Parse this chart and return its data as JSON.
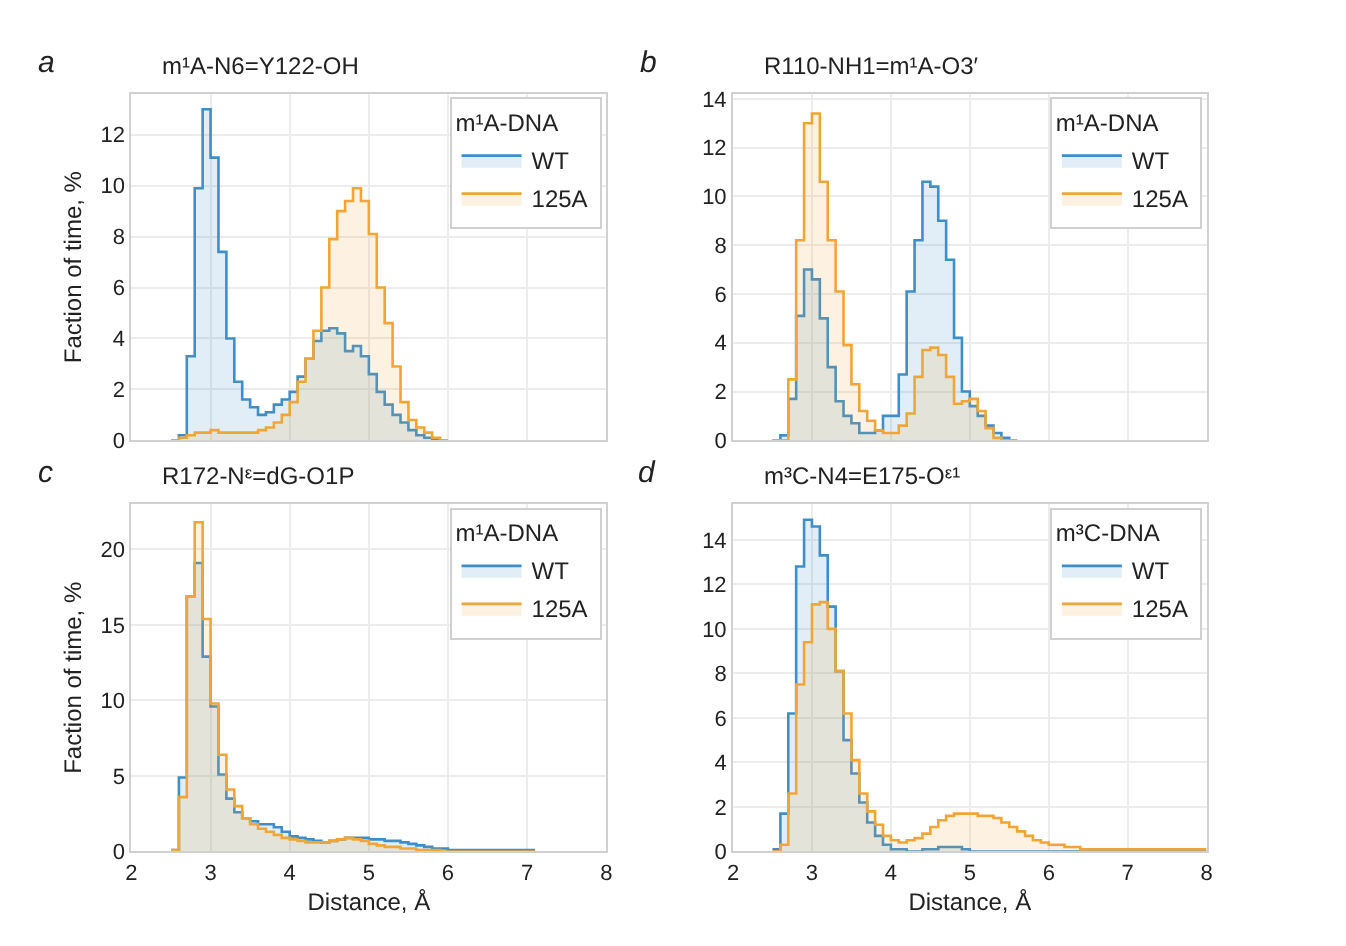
{
  "chart_data": [
    {
      "type": "histogram",
      "title": "m¹A-N6=Y122-OH",
      "annotations": [
        "a"
      ],
      "ylabel": "Faction of time, %",
      "legend_title": "m¹A-DNA",
      "legend": "top right",
      "grid": true,
      "tick_labels": "y",
      "bins": [
        2.5,
        2.6,
        2.7,
        2.8,
        2.9,
        3.0,
        3.1,
        3.2,
        3.3,
        3.4,
        3.5,
        3.6,
        3.7,
        3.8,
        3.9,
        4.0,
        4.1,
        4.2,
        4.3,
        4.4,
        4.5,
        4.6,
        4.7,
        4.8,
        4.9,
        5.0,
        5.1,
        5.2,
        5.3,
        5.4,
        5.5,
        5.6,
        5.7,
        5.8,
        5.9,
        6.0
      ],
      "xlim": [
        2,
        8
      ],
      "xticks": [
        2,
        3,
        4,
        5,
        6,
        7,
        8
      ],
      "ylim": [
        0,
        13.6
      ],
      "yticks": [
        0,
        2,
        4,
        6,
        8,
        10,
        12
      ],
      "series": [
        {
          "name": "WT",
          "color": "#3d8ec9",
          "values": [
            0,
            0.2,
            3.3,
            9.9,
            13.0,
            11.1,
            7.4,
            4.0,
            2.3,
            1.6,
            1.3,
            1.0,
            1.1,
            1.4,
            1.6,
            1.9,
            2.5,
            3.2,
            3.9,
            4.3,
            4.4,
            4.2,
            3.5,
            3.7,
            3.3,
            2.6,
            1.9,
            1.4,
            1.0,
            0.7,
            0.4,
            0.2,
            0.1,
            0,
            0
          ]
        },
        {
          "name": "125A",
          "color": "#f0a636",
          "values": [
            0,
            0.1,
            0.2,
            0.3,
            0.3,
            0.4,
            0.3,
            0.3,
            0.3,
            0.3,
            0.3,
            0.4,
            0.5,
            0.7,
            1.0,
            1.5,
            2.3,
            3.2,
            4.3,
            6.0,
            7.9,
            9.0,
            9.4,
            9.9,
            9.4,
            8.1,
            6.0,
            4.6,
            2.9,
            1.5,
            0.8,
            0.5,
            0.3,
            0.1,
            0
          ]
        }
      ]
    },
    {
      "type": "histogram",
      "title": "R110-NH1=m¹A-O3′",
      "annotations": [
        "b"
      ],
      "legend_title": "m¹A-DNA",
      "legend": "top right",
      "grid": true,
      "tick_labels": "y",
      "bins": [
        2.5,
        2.6,
        2.7,
        2.8,
        2.9,
        3.0,
        3.1,
        3.2,
        3.3,
        3.4,
        3.5,
        3.6,
        3.7,
        3.8,
        3.9,
        4.0,
        4.1,
        4.2,
        4.3,
        4.4,
        4.5,
        4.6,
        4.7,
        4.8,
        4.9,
        5.0,
        5.1,
        5.2,
        5.3,
        5.4,
        5.5,
        5.6
      ],
      "xlim": [
        2,
        8
      ],
      "xticks": [
        2,
        3,
        4,
        5,
        6,
        7,
        8
      ],
      "ylim": [
        0,
        14.2
      ],
      "yticks": [
        0,
        2,
        4,
        6,
        8,
        10,
        12,
        14
      ],
      "series": [
        {
          "name": "WT",
          "color": "#3d8ec9",
          "values": [
            0,
            0.2,
            1.7,
            5.1,
            7.0,
            6.6,
            5.0,
            3.0,
            1.6,
            1.0,
            0.7,
            0.3,
            0.3,
            0.4,
            1.0,
            1.0,
            2.7,
            6.1,
            8.2,
            10.6,
            10.4,
            9.0,
            7.4,
            4.2,
            2.0,
            1.4,
            1.0,
            0.6,
            0.3,
            0.1,
            0
          ]
        },
        {
          "name": "125A",
          "color": "#f0a636",
          "values": [
            0,
            0,
            2.5,
            8.2,
            13.0,
            13.4,
            10.6,
            8.2,
            6.1,
            3.9,
            2.3,
            1.2,
            0.8,
            0.4,
            0.3,
            0.3,
            0.6,
            1.1,
            2.6,
            3.7,
            3.8,
            3.5,
            2.6,
            1.5,
            1.6,
            1.7,
            1.2,
            0.5,
            0.1,
            0,
            0
          ]
        }
      ]
    },
    {
      "type": "histogram",
      "title": "R172-Nᵋ=dG-O1P",
      "annotations": [
        "c"
      ],
      "xlabel": "Distance, Å",
      "ylabel": "Faction of time, %",
      "legend_title": "m¹A-DNA",
      "legend": "top right",
      "grid": true,
      "bins": [
        2.5,
        2.6,
        2.7,
        2.8,
        2.9,
        3.0,
        3.1,
        3.2,
        3.3,
        3.4,
        3.5,
        3.6,
        3.7,
        3.8,
        3.9,
        4.0,
        4.1,
        4.2,
        4.3,
        4.4,
        4.5,
        4.6,
        4.7,
        4.8,
        4.9,
        5.0,
        5.1,
        5.2,
        5.3,
        5.4,
        5.5,
        5.6,
        5.7,
        5.8,
        5.9,
        6.0,
        6.1,
        6.2,
        6.3,
        6.4,
        6.5,
        6.6,
        6.7,
        6.8,
        6.9,
        7.0,
        7.1
      ],
      "xlim": [
        2,
        8
      ],
      "xticks": [
        2,
        3,
        4,
        5,
        6,
        7,
        8
      ],
      "ylim": [
        0,
        23
      ],
      "yticks": [
        0,
        5,
        10,
        15,
        20
      ],
      "series": [
        {
          "name": "WT",
          "color": "#3d8ec9",
          "values": [
            0.1,
            4.9,
            16.9,
            19.1,
            12.9,
            9.6,
            5.1,
            3.5,
            2.6,
            2.2,
            2.0,
            1.8,
            1.8,
            1.6,
            1.3,
            1.0,
            0.9,
            0.8,
            0.7,
            0.6,
            0.7,
            0.8,
            0.9,
            0.9,
            0.9,
            0.8,
            0.8,
            0.7,
            0.7,
            0.6,
            0.5,
            0.4,
            0.3,
            0.2,
            0.2,
            0.1,
            0.1,
            0.1,
            0.1,
            0.1,
            0.1,
            0.1,
            0.1,
            0.1,
            0.1,
            0.1
          ]
        },
        {
          "name": "125A",
          "color": "#f0a636",
          "values": [
            0.1,
            3.6,
            16.9,
            21.8,
            15.4,
            9.8,
            6.4,
            4.1,
            3.0,
            2.2,
            1.8,
            1.5,
            1.3,
            1.1,
            0.9,
            0.8,
            0.7,
            0.6,
            0.6,
            0.6,
            0.7,
            0.8,
            0.9,
            0.8,
            0.7,
            0.5,
            0.4,
            0.3,
            0.3,
            0.2,
            0.2,
            0.1,
            0.1,
            0.1,
            0,
            0,
            0,
            0,
            0,
            0,
            0,
            0,
            0,
            0,
            0,
            0
          ]
        }
      ]
    },
    {
      "type": "histogram",
      "title": "m³C-N4=E175-Oᵋ¹",
      "annotations": [
        "d"
      ],
      "xlabel": "Distance, Å",
      "legend_title": "m³C-DNA",
      "legend": "top right",
      "grid": true,
      "bins": [
        2.5,
        2.6,
        2.7,
        2.8,
        2.9,
        3.0,
        3.1,
        3.2,
        3.3,
        3.4,
        3.5,
        3.6,
        3.7,
        3.8,
        3.9,
        4.0,
        4.1,
        4.2,
        4.3,
        4.4,
        4.5,
        4.6,
        4.7,
        4.8,
        4.9,
        5.0,
        5.1,
        5.2,
        5.3,
        5.4,
        5.5,
        5.6,
        5.7,
        5.8,
        5.9,
        6.0,
        6.1,
        6.2,
        6.3,
        6.4,
        6.5,
        6.6,
        6.7,
        6.8,
        6.9,
        7.0,
        7.1,
        7.2,
        7.3,
        7.4,
        7.5,
        7.6,
        7.7,
        7.8,
        7.9,
        8.0
      ],
      "xlim": [
        2,
        8
      ],
      "xticks": [
        2,
        3,
        4,
        5,
        6,
        7,
        8
      ],
      "ylim": [
        0,
        15.6
      ],
      "yticks": [
        0,
        2,
        4,
        6,
        8,
        10,
        12,
        14
      ],
      "series": [
        {
          "name": "WT",
          "color": "#3d8ec9",
          "values": [
            0.1,
            1.7,
            6.2,
            12.8,
            14.9,
            14.6,
            13.3,
            11.0,
            8.1,
            5.0,
            3.5,
            2.2,
            1.3,
            0.7,
            0.3,
            0.1,
            0.1,
            0,
            0,
            0.1,
            0.1,
            0.2,
            0.2,
            0.2,
            0.1,
            0,
            0,
            0,
            0,
            0,
            0,
            0,
            0,
            0,
            0,
            0,
            0,
            0,
            0,
            0,
            0,
            0,
            0,
            0,
            0,
            0,
            0,
            0,
            0,
            0,
            0,
            0,
            0,
            0,
            0
          ]
        },
        {
          "name": "125A",
          "color": "#f0a636",
          "values": [
            0,
            0.3,
            2.6,
            7.5,
            9.4,
            11.1,
            11.2,
            10.0,
            8.1,
            6.2,
            4.1,
            2.6,
            1.8,
            1.2,
            0.7,
            0.5,
            0.4,
            0.5,
            0.6,
            0.8,
            1.1,
            1.4,
            1.6,
            1.7,
            1.7,
            1.7,
            1.6,
            1.6,
            1.5,
            1.3,
            1.1,
            0.9,
            0.7,
            0.5,
            0.4,
            0.3,
            0.3,
            0.2,
            0.2,
            0.1,
            0.1,
            0.1,
            0.1,
            0.1,
            0.1,
            0.1,
            0.1,
            0.1,
            0.1,
            0.1,
            0.1,
            0.1,
            0.1,
            0.1,
            0.1
          ]
        }
      ]
    }
  ]
}
